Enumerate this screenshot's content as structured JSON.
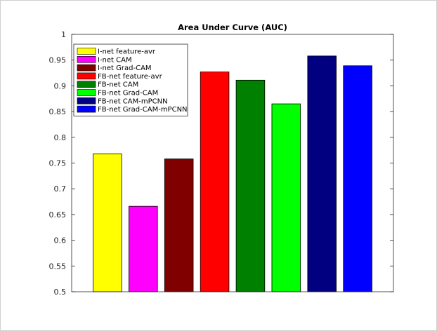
{
  "chart_data": {
    "type": "bar",
    "title": "Area Under Curve (AUC)",
    "xlabel": "",
    "ylabel": "",
    "ylim": [
      0.5,
      1
    ],
    "yticks": [
      0.5,
      0.55,
      0.6,
      0.65,
      0.7,
      0.75,
      0.8,
      0.85,
      0.9,
      0.95,
      1
    ],
    "ytick_labels": [
      "0.5",
      "0.55",
      "0.6",
      "0.65",
      "0.7",
      "0.75",
      "0.8",
      "0.85",
      "0.9",
      "0.95",
      "1"
    ],
    "grid": false,
    "legend_position": "top-left",
    "categories": [
      "I-net feature-avr",
      "I-net CAM",
      "I-net Grad-CAM",
      "FB-net feature-avr",
      "FB-net CAM",
      "FB-net Grad-CAM",
      "FB-net CAM-mPCNN",
      "FB-net Grad-CAM-mPCNN"
    ],
    "values": [
      0.768,
      0.666,
      0.758,
      0.927,
      0.911,
      0.865,
      0.958,
      0.939
    ],
    "colors": [
      "#ffff00",
      "#ff00ff",
      "#800000",
      "#ff0000",
      "#008000",
      "#00ff00",
      "#000080",
      "#0000ff"
    ]
  }
}
